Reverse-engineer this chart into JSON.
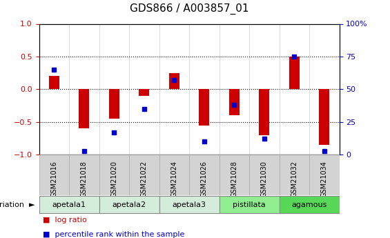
{
  "title": "GDS866 / A003857_01",
  "samples": [
    "GSM21016",
    "GSM21018",
    "GSM21020",
    "GSM21022",
    "GSM21024",
    "GSM21026",
    "GSM21028",
    "GSM21030",
    "GSM21032",
    "GSM21034"
  ],
  "log_ratio": [
    0.2,
    -0.6,
    -0.45,
    -0.1,
    0.25,
    -0.55,
    -0.4,
    -0.7,
    0.5,
    -0.85
  ],
  "percentile": [
    65,
    3,
    17,
    35,
    57,
    10,
    38,
    12,
    75,
    3
  ],
  "groups": [
    {
      "name": "apetala1",
      "cols": [
        0,
        1
      ]
    },
    {
      "name": "apetala2",
      "cols": [
        2,
        3
      ]
    },
    {
      "name": "apetala3",
      "cols": [
        4,
        5
      ]
    },
    {
      "name": "pistillata",
      "cols": [
        6,
        7
      ]
    },
    {
      "name": "agamous",
      "cols": [
        8,
        9
      ]
    }
  ],
  "bar_color": "#cc0000",
  "dot_color": "#0000cc",
  "ylim": [
    -1,
    1
  ],
  "right_ylim": [
    0,
    100
  ],
  "dotted_lines": [
    -0.5,
    0.0,
    0.5
  ],
  "apetala_color": "#d4edda",
  "pistillata_color": "#90ee90",
  "agamous_color": "#57d957",
  "sample_bg_color": "#d3d3d3",
  "title_fontsize": 11,
  "tick_fontsize": 7,
  "label_fontsize": 8
}
